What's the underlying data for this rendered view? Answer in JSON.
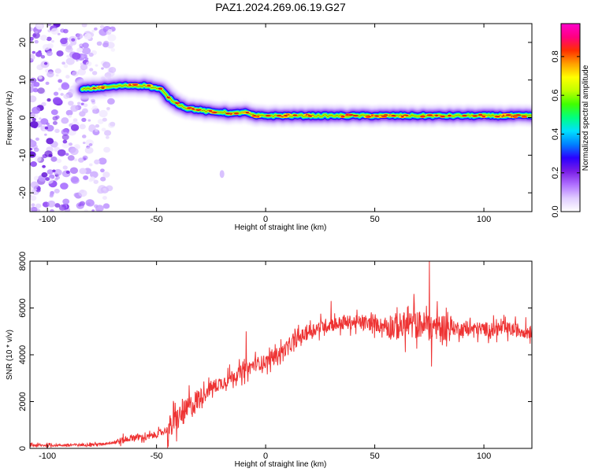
{
  "figure": {
    "title": "PAZ1.2024.269.06.19.G27"
  },
  "chart_data": [
    {
      "type": "heatmap",
      "name": "spectrogram",
      "xlabel": "Height of straight line (km)",
      "ylabel": "Frequency (Hz)",
      "xlim": [
        -108,
        122
      ],
      "ylim": [
        -25,
        25
      ],
      "xticks": [
        -100,
        -50,
        0,
        50,
        100
      ],
      "yticks": [
        -20,
        -10,
        0,
        10,
        20
      ],
      "xtick_labels": [
        "-100",
        "-50",
        "0",
        "50",
        "100"
      ],
      "ytick_labels": [
        "-20",
        "-10",
        "0",
        "10",
        "20"
      ],
      "colorbar": {
        "label": "Normalized spectral amplitude",
        "range": [
          0,
          0.97
        ],
        "ticks": [
          0.0,
          0.2,
          0.4,
          0.6,
          0.8
        ],
        "tick_labels": [
          "0.0",
          "0.2",
          "0.4",
          "0.6",
          "0.8"
        ],
        "colormap": [
          "#ffffff",
          "#e0ccff",
          "#b070ff",
          "#7a1ee6",
          "#2b00ff",
          "#0080ff",
          "#00e0ff",
          "#00ff80",
          "#40ff00",
          "#c0ff00",
          "#ffff00",
          "#ffa000",
          "#ff3000",
          "#ff0080",
          "#ff00cc"
        ]
      },
      "noise_region": {
        "x": [
          -108,
          -70
        ],
        "y": [
          -25,
          25
        ]
      },
      "ridge": {
        "x": [
          -84,
          -75,
          -65,
          -55,
          -48,
          -44,
          -40,
          -36,
          -30,
          -25,
          -20,
          -15,
          -10,
          -5,
          0,
          20,
          40,
          60,
          80,
          100,
          122
        ],
        "y": [
          7.5,
          8.0,
          8.5,
          8.5,
          7.5,
          5.0,
          3.5,
          2.5,
          2.0,
          1.5,
          1.5,
          1.0,
          1.5,
          0.5,
          0.5,
          0.5,
          0.5,
          0.5,
          0.5,
          0.5,
          0.5
        ]
      }
    },
    {
      "type": "line",
      "name": "snr",
      "xlabel": "Height of straight line (km)",
      "ylabel": "SNR (10 * v/v)",
      "xlim": [
        -108,
        122
      ],
      "ylim": [
        0,
        8000
      ],
      "xticks": [
        -100,
        -50,
        0,
        50,
        100
      ],
      "yticks": [
        0,
        2000,
        4000,
        6000,
        8000
      ],
      "xtick_labels": [
        "-100",
        "-50",
        "0",
        "50",
        "100"
      ],
      "ytick_labels": [
        "0",
        "2000",
        "4000",
        "6000",
        "8000"
      ],
      "color": "#ee3333",
      "trend": {
        "x": [
          -108,
          -90,
          -75,
          -65,
          -60,
          -55,
          -50,
          -45,
          -40,
          -35,
          -30,
          -25,
          -20,
          -15,
          -10,
          -5,
          0,
          5,
          10,
          15,
          20,
          25,
          30,
          40,
          50,
          60,
          70,
          80,
          90,
          100,
          110,
          122
        ],
        "y": [
          130,
          140,
          180,
          350,
          500,
          450,
          600,
          800,
          1300,
          1700,
          2200,
          2600,
          2800,
          3100,
          3300,
          3600,
          3700,
          4000,
          4300,
          4700,
          5000,
          5200,
          5300,
          5400,
          5300,
          5200,
          5300,
          5200,
          5100,
          5100,
          5100,
          5000
        ]
      },
      "spikes": [
        {
          "x": -35,
          "y": 2700
        },
        {
          "x": -9,
          "y": 5000
        },
        {
          "x": 30,
          "y": 6300
        },
        {
          "x": 68,
          "y": 6600
        },
        {
          "x": 75,
          "y": 8000
        },
        {
          "x": 76,
          "y": 3500
        }
      ]
    }
  ]
}
